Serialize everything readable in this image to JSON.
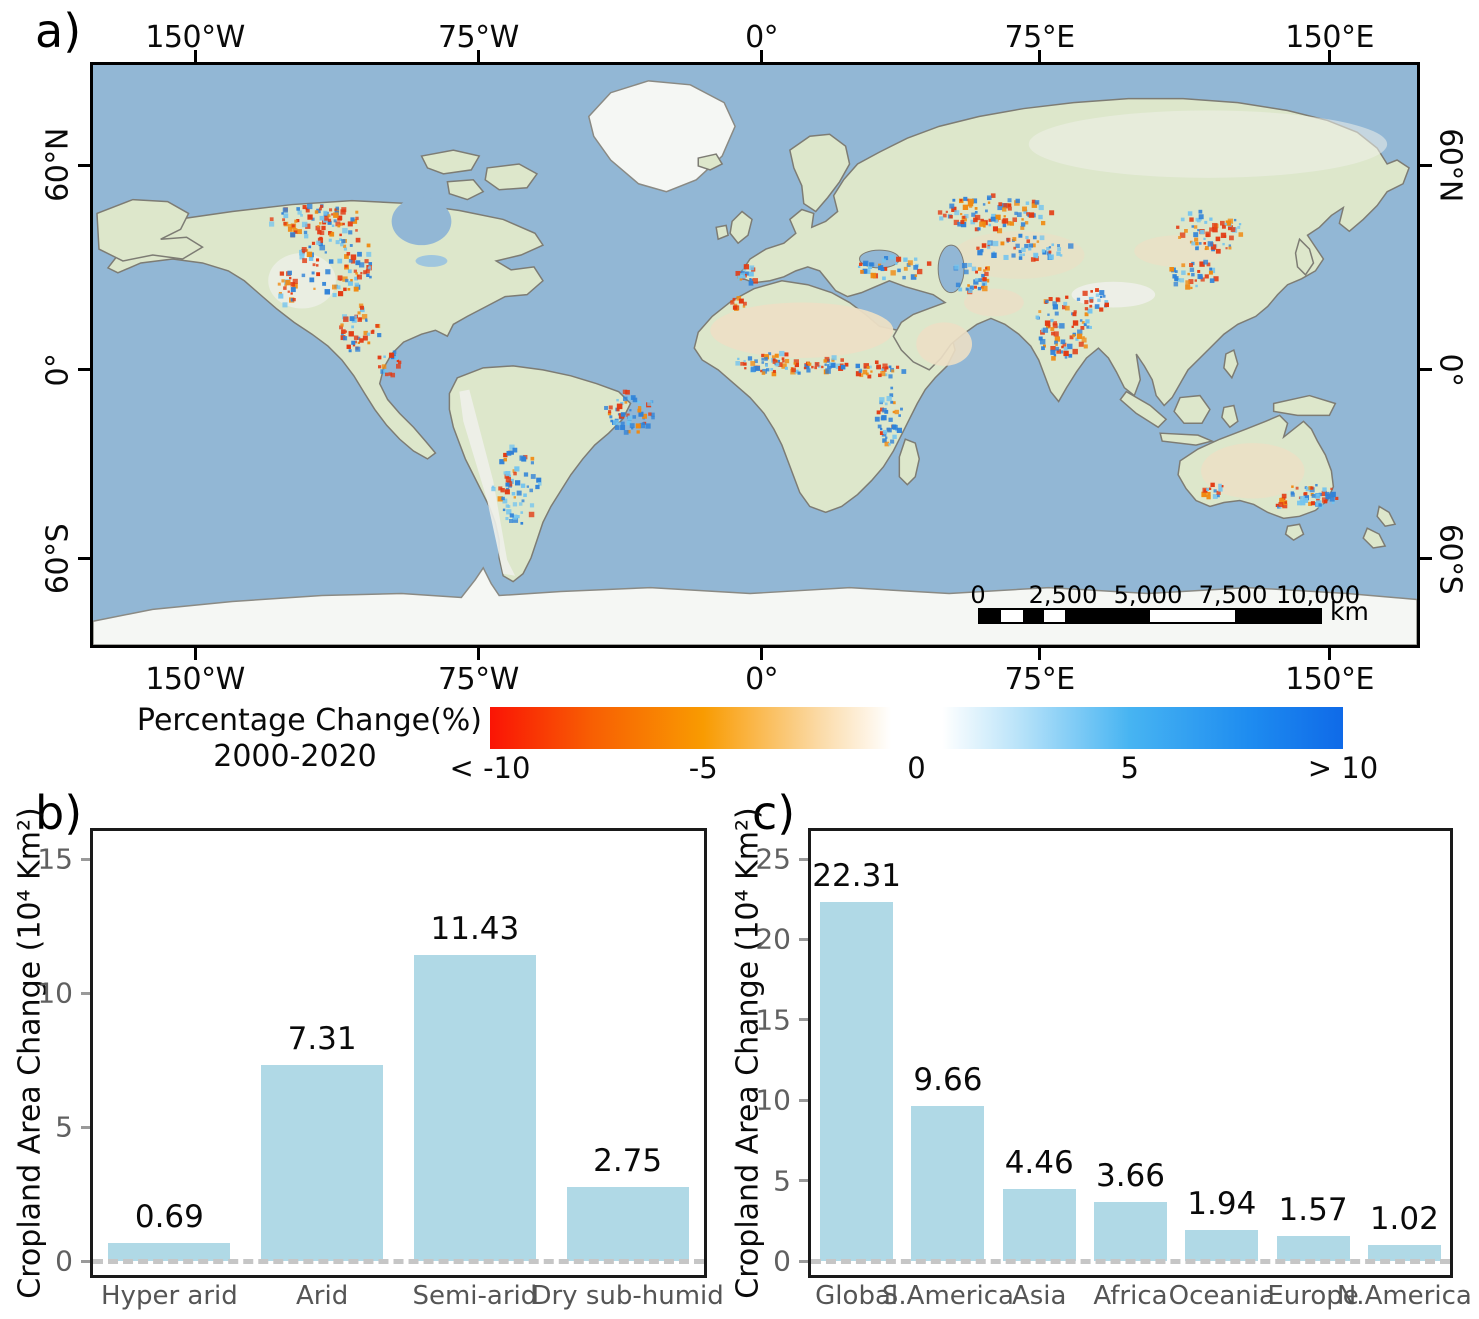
{
  "labels": {
    "panel_a": "a)",
    "panel_b": "b)",
    "panel_c": "c)"
  },
  "map": {
    "lon_ticks": [
      {
        "label": "150°W",
        "pct": 7.9
      },
      {
        "label": "75°W",
        "pct": 29.2
      },
      {
        "label": "0°",
        "pct": 50.5
      },
      {
        "label": "75°E",
        "pct": 71.4
      },
      {
        "label": "150°E",
        "pct": 93.2
      }
    ],
    "lat_ticks": [
      {
        "label": "60°N",
        "pct": 17.6
      },
      {
        "label": "0°",
        "pct": 52.5
      },
      {
        "label": "60°S",
        "pct": 84.8
      }
    ],
    "scale_bar": {
      "tick_labels": [
        "0",
        "2,500",
        "5,000",
        "7,500",
        "10,000"
      ],
      "unit": "km"
    },
    "colors": {
      "ocean": "#92b7d5",
      "land": "#dde7cb",
      "ice": "#f5f7f4",
      "tan": "#ecdfc5",
      "coast": "#7d7c74",
      "decrease_strong": "#e23911",
      "decrease_mild": "#f08a12",
      "increase_strong": "#2f82d8",
      "increase_mild": "#74c4ee"
    }
  },
  "colorbar": {
    "title_line1": "Percentage Change(%)",
    "title_line2": "2000-2020",
    "ticks": [
      {
        "label": "< -10",
        "pct": 0
      },
      {
        "label": "-5",
        "pct": 25
      },
      {
        "label": "0",
        "pct": 50
      },
      {
        "label": "5",
        "pct": 75
      },
      {
        "label": "> 10",
        "pct": 100
      }
    ],
    "gradient_stops": [
      {
        "color": "#fa1405",
        "pct": 0
      },
      {
        "color": "#f85f03",
        "pct": 12
      },
      {
        "color": "#f99b01",
        "pct": 25
      },
      {
        "color": "#fbdcab",
        "pct": 39
      },
      {
        "color": "#ffffff",
        "pct": 47
      },
      {
        "color": "#ffffff",
        "pct": 53
      },
      {
        "color": "#b9e3f9",
        "pct": 62
      },
      {
        "color": "#47b4f2",
        "pct": 75
      },
      {
        "color": "#1e8cf0",
        "pct": 89
      },
      {
        "color": "#0f6ae8",
        "pct": 100
      }
    ]
  },
  "chart_data": [
    {
      "type": "bar",
      "panel": "b",
      "title": "",
      "xlabel": "",
      "ylabel": "Cropland Area Change (10⁴ Km²)",
      "categories": [
        "Hyper arid",
        "Arid",
        "Semi-arid",
        "Dry sub-humid"
      ],
      "values": [
        0.69,
        7.31,
        11.43,
        2.75
      ],
      "value_labels": [
        "0.69",
        "7.31",
        "11.43",
        "2.75"
      ],
      "yticks": [
        0,
        5,
        10,
        15
      ],
      "ylim": [
        -0.8,
        16.7
      ],
      "grid": false,
      "legend": false,
      "bar_color": "#b0d9e6",
      "zero_line": "dashed-gray"
    },
    {
      "type": "bar",
      "panel": "c",
      "title": "",
      "xlabel": "",
      "ylabel": "Cropland Area Change (10⁴ Km²)",
      "categories": [
        "Global",
        "S.America",
        "Asia",
        "Africa",
        "Oceania",
        "Europe",
        "N.America"
      ],
      "values": [
        22.31,
        9.66,
        4.46,
        3.66,
        1.94,
        1.57,
        1.02
      ],
      "value_labels": [
        "22.31",
        "9.66",
        "4.46",
        "3.66",
        "1.94",
        "1.57",
        "1.02"
      ],
      "yticks": [
        0,
        5,
        10,
        15,
        20,
        25
      ],
      "ylim": [
        -1.3,
        27.8
      ],
      "grid": false,
      "legend": false,
      "bar_color": "#b0d9e6",
      "zero_line": "dashed-gray"
    }
  ]
}
